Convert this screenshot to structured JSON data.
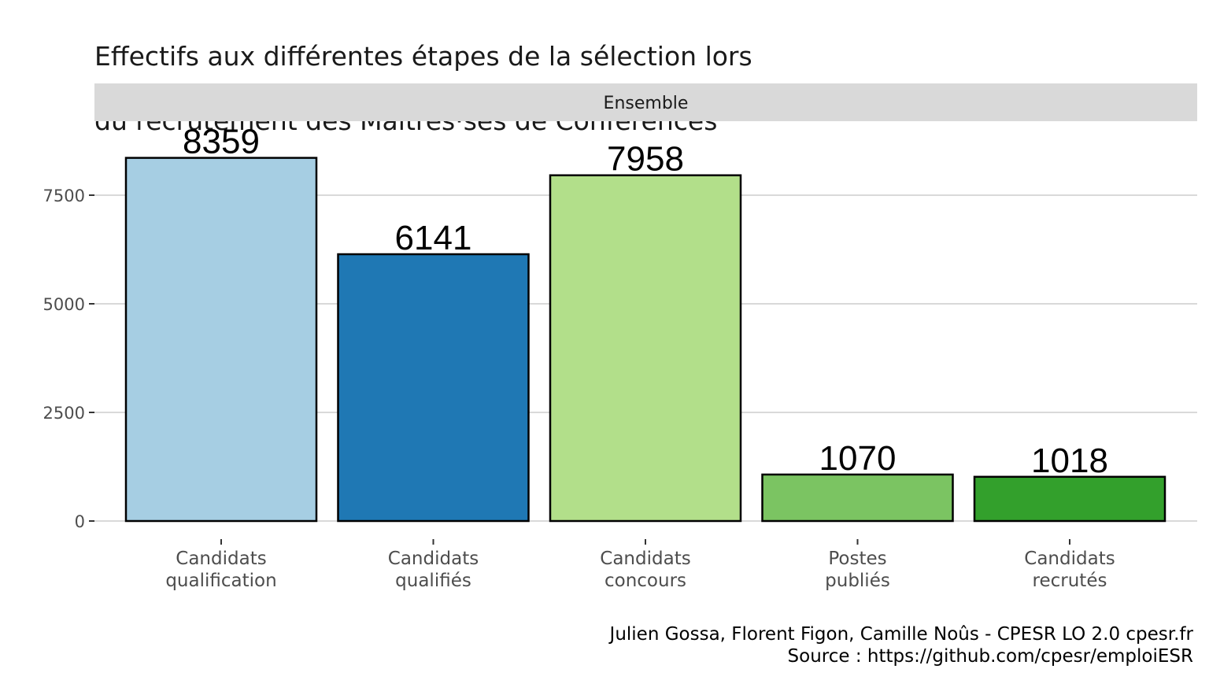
{
  "title_lines": [
    "Effectifs aux différentes étapes de la sélection lors",
    "du recrutement des Maîtres·ses de Conférences"
  ],
  "caption_lines": [
    "Julien Gossa, Florent Figon, Camille Noûs - CPESR LO 2.0 cpesr.fr",
    "Source : https://github.com/cpesr/emploiESR"
  ],
  "chart_data": {
    "type": "bar",
    "facet": "Ensemble",
    "categories": [
      [
        "Candidats",
        "qualification"
      ],
      [
        "Candidats",
        "qualifiés"
      ],
      [
        "Candidats",
        "concours"
      ],
      [
        "Postes",
        "publiés"
      ],
      [
        "Candidats",
        "recrutés"
      ]
    ],
    "values": [
      8359,
      6141,
      7958,
      1070,
      1018
    ],
    "colors": [
      "#a6cee3",
      "#1f78b4",
      "#b2df8a",
      "#7bc462",
      "#33a02c"
    ],
    "yticks": [
      0,
      2500,
      5000,
      7500
    ],
    "ylim": [
      0,
      8750
    ],
    "grid": true,
    "title": "Effectifs aux différentes étapes de la sélection lors du recrutement des Maîtres·ses de Conférences",
    "xlabel": "",
    "ylabel": ""
  }
}
